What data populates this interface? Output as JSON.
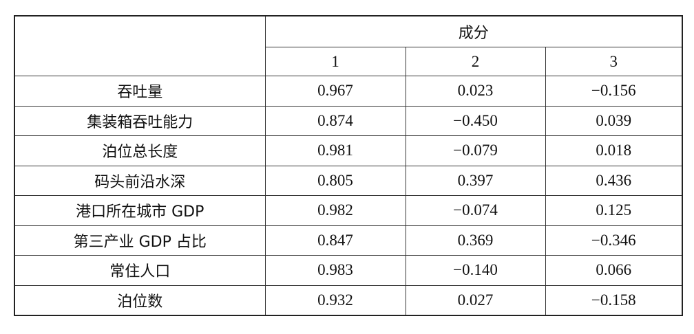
{
  "table": {
    "group_header": "成分",
    "columns": [
      "1",
      "2",
      "3"
    ],
    "rows": [
      [
        "吞吐量",
        "0.967",
        "0.023",
        "−0.156"
      ],
      [
        "集装箱吞吐能力",
        "0.874",
        "−0.450",
        "0.039"
      ],
      [
        "泊位总长度",
        "0.981",
        "−0.079",
        "0.018"
      ],
      [
        "码头前沿水深",
        "0.805",
        "0.397",
        "0.436"
      ],
      [
        "港口所在城市 GDP",
        "0.982",
        "−0.074",
        "0.125"
      ],
      [
        "第三产业 GDP 占比",
        "0.847",
        "0.369",
        "−0.346"
      ],
      [
        "常住人口",
        "0.983",
        "−0.140",
        "0.066"
      ],
      [
        "泊位数",
        "0.932",
        "0.027",
        "−0.158"
      ]
    ]
  }
}
